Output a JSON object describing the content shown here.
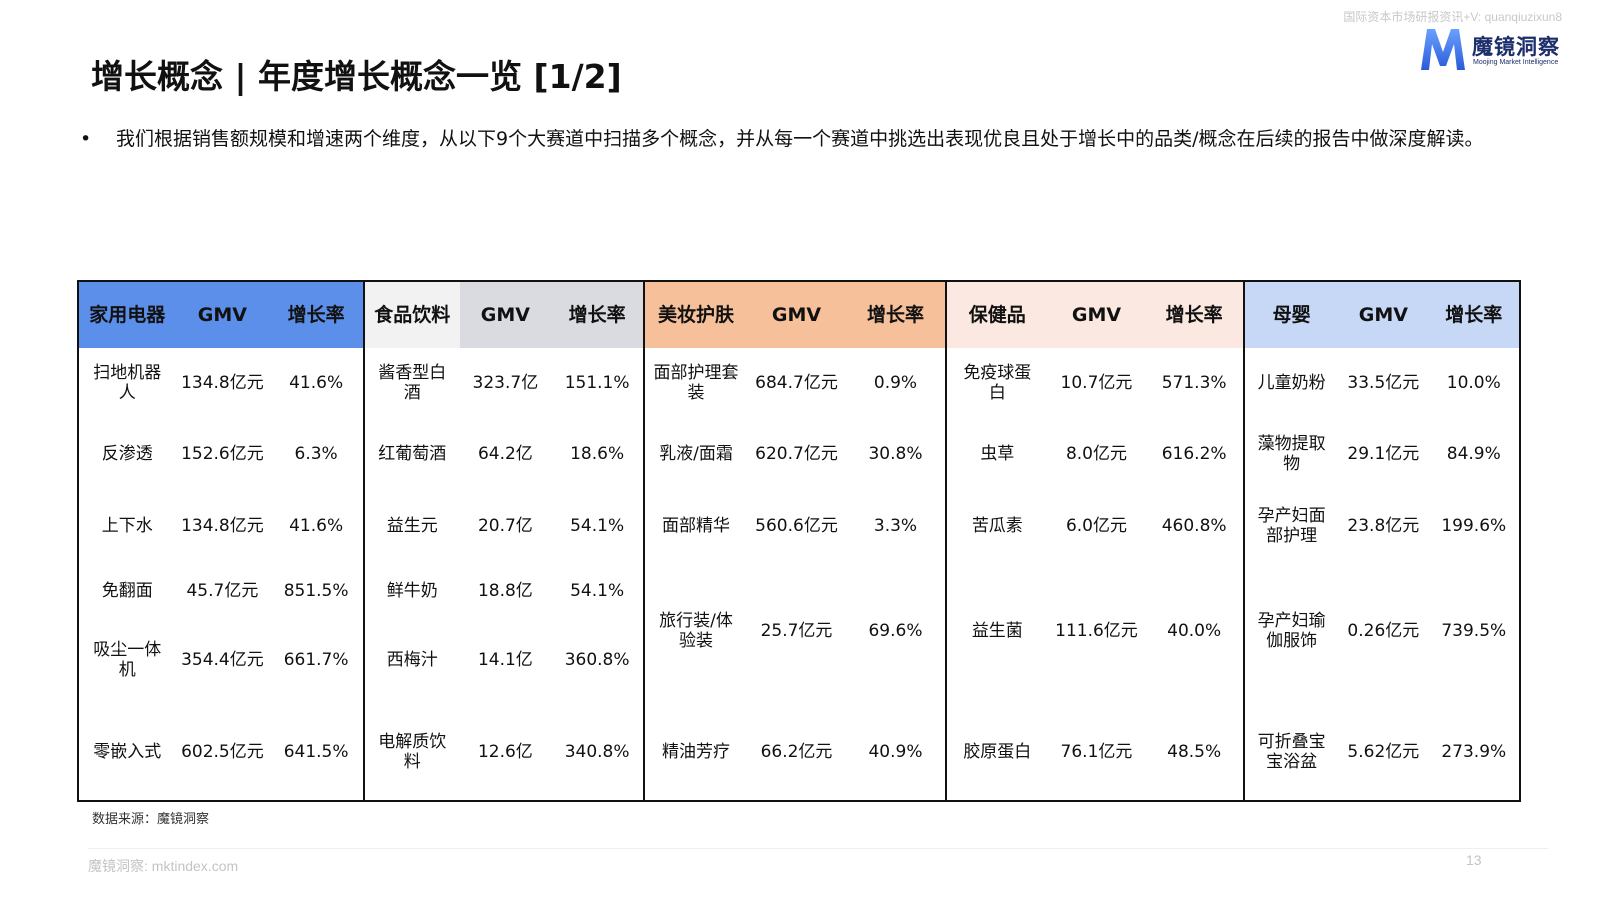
{
  "watermark": "国际资本市场研报资讯+V: quanqiuzixun8",
  "logo": {
    "cn": "魔镜洞察",
    "en": "Moojing Market Intelligence",
    "mark_color": "#3a6fe0"
  },
  "title": "增长概念 | 年度增长概念一览 [1/2]",
  "bullet": {
    "dot": "•",
    "text": "我们根据销售额规模和增速两个维度，从以下9个大赛道中扫描多个概念，并从每一个赛道中挑选出表现优良且处于增长中的品类/概念在后续的报告中做深度解读。"
  },
  "groups": [
    {
      "header": [
        "家用电器",
        "GMV",
        "增长率"
      ],
      "header_color": "#5b8fea",
      "rows": [
        [
          "扫地机器人",
          "134.8亿元",
          "41.6%"
        ],
        [
          "反渗透",
          "152.6亿元",
          "6.3%"
        ],
        [
          "上下水",
          "134.8亿元",
          "41.6%"
        ],
        [
          "免翻面",
          "45.7亿元",
          "851.5%"
        ],
        [
          "吸尘一体机",
          "354.4亿元",
          "661.7%"
        ],
        [
          "零嵌入式",
          "602.5亿元",
          "641.5%"
        ]
      ]
    },
    {
      "header": [
        "食品饮料",
        "GMV",
        "增长率"
      ],
      "header_color": "#d9dbe0",
      "rows": [
        [
          "酱香型白酒",
          "323.7亿",
          "151.1%"
        ],
        [
          "红葡萄酒",
          "64.2亿",
          "18.6%"
        ],
        [
          "益生元",
          "20.7亿",
          "54.1%"
        ],
        [
          "鲜牛奶",
          "18.8亿",
          "54.1%"
        ],
        [
          "西梅汁",
          "14.1亿",
          "360.8%"
        ],
        [
          "电解质饮料",
          "12.6亿",
          "340.8%"
        ]
      ]
    },
    {
      "header": [
        "美妆护肤",
        "GMV",
        "增长率"
      ],
      "header_color": "#f6c09a",
      "rows": [
        [
          "面部护理套装",
          "684.7亿元",
          "0.9%"
        ],
        [
          "乳液/面霜",
          "620.7亿元",
          "30.8%"
        ],
        [
          "面部精华",
          "560.6亿元",
          "3.3%"
        ],
        [
          "旅行装/体验装",
          "25.7亿元",
          "69.6%"
        ],
        [
          "精油芳疗",
          "66.2亿元",
          "40.9%"
        ]
      ]
    },
    {
      "header": [
        "保健品",
        "GMV",
        "增长率"
      ],
      "header_color": "#fbe9e1",
      "rows": [
        [
          "免疫球蛋白",
          "10.7亿元",
          "571.3%"
        ],
        [
          "虫草",
          "8.0亿元",
          "616.2%"
        ],
        [
          "苦瓜素",
          "6.0亿元",
          "460.8%"
        ],
        [
          "益生菌",
          "111.6亿元",
          "40.0%"
        ],
        [
          "胶原蛋白",
          "76.1亿元",
          "48.5%"
        ]
      ]
    },
    {
      "header": [
        "母婴",
        "GMV",
        "增长率"
      ],
      "header_color": "#c6d8f5",
      "rows": [
        [
          "儿童奶粉",
          "33.5亿元",
          "10.0%"
        ],
        [
          "藻物提取物",
          "29.1亿元",
          "84.9%"
        ],
        [
          "孕产妇面部护理",
          "23.8亿元",
          "199.6%"
        ],
        [
          "孕产妇瑜伽服饰",
          "0.26亿元",
          "739.5%"
        ],
        [
          "可折叠宝宝浴盆",
          "5.62亿元",
          "273.9%"
        ]
      ]
    }
  ],
  "source": "数据来源：魔镜洞察",
  "footer": "魔镜洞察:  mktindex.com",
  "page_number": "13"
}
